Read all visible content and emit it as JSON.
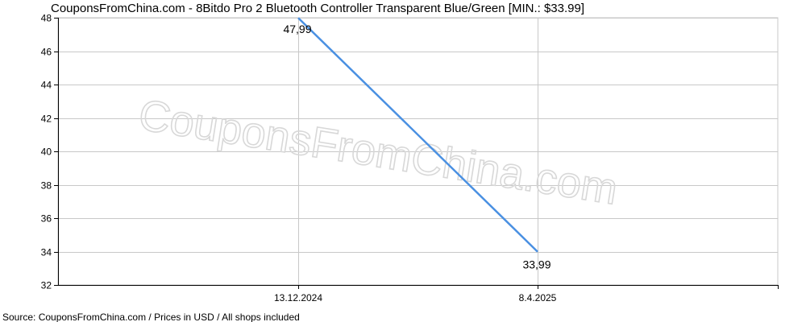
{
  "chart_data": {
    "type": "line",
    "title": "CouponsFromChina.com - 8Bitdo Pro 2 Bluetooth Controller Transparent Blue/Green [MIN.: $33.99]",
    "x": [
      "13.12.2024",
      "8.4.2025"
    ],
    "series": [
      {
        "values": [
          47.99,
          33.99
        ],
        "data_labels": [
          "47,99",
          "33,99"
        ],
        "color": "#4a90e2"
      }
    ],
    "ylim": [
      32,
      48
    ],
    "yticks": [
      32,
      34,
      36,
      38,
      40,
      42,
      44,
      46,
      48
    ],
    "grid": true,
    "legend": "none",
    "watermark": "CouponsFromChina.com",
    "footer": "Source: CouponsFromChina.com / Prices in USD / All shops included"
  }
}
